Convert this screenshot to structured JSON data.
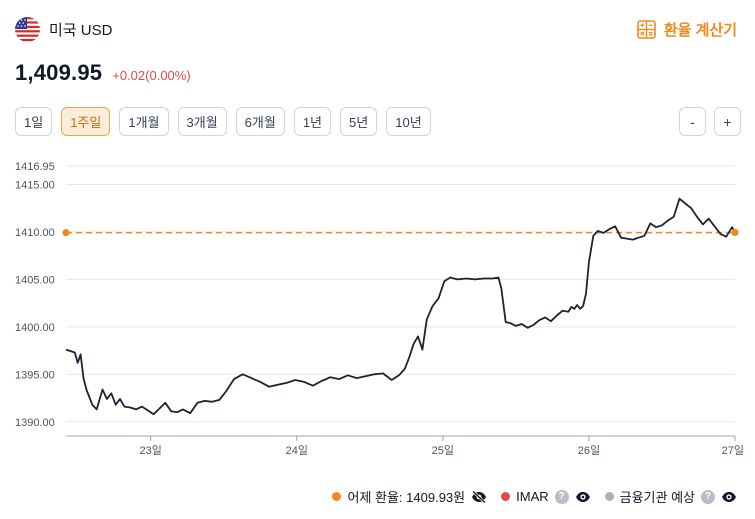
{
  "header": {
    "currency_name": "미국 USD",
    "flag_icon": "us-flag-icon",
    "calculator_label": "환율 계산기",
    "calculator_icon": "calculator-icon"
  },
  "rate": {
    "value": "1,409.95",
    "change": "+0.02(0.00%)"
  },
  "periods": [
    {
      "label": "1일",
      "active": false
    },
    {
      "label": "1주일",
      "active": true
    },
    {
      "label": "1개월",
      "active": false
    },
    {
      "label": "3개월",
      "active": false
    },
    {
      "label": "6개월",
      "active": false
    },
    {
      "label": "1년",
      "active": false
    },
    {
      "label": "5년",
      "active": false
    },
    {
      "label": "10년",
      "active": false
    }
  ],
  "zoom": {
    "out_label": "-",
    "in_label": "+"
  },
  "colors": {
    "line": "#1c2333",
    "reference": "#f08a1c",
    "imar": "#e5484d",
    "bank": "#aab0b9"
  },
  "legend": {
    "yesterday": "어제 환율: 1409.93원",
    "imar": "IMAR",
    "bank": "금융기관 예상",
    "help": "?"
  },
  "chart_data": {
    "type": "line",
    "x_unit": "day",
    "xlim": [
      22.42,
      27.0
    ],
    "ylim": [
      1388.5,
      1416.95
    ],
    "y_ticks": [
      1390.0,
      1395.0,
      1400.0,
      1405.0,
      1410.0,
      1415.0,
      1416.95
    ],
    "y_tick_labels": [
      "1390.00",
      "1395.00",
      "1400.00",
      "1405.00",
      "1410.00",
      "1415.00",
      "1416.95"
    ],
    "x_ticks": [
      23,
      24,
      25,
      26,
      27
    ],
    "x_tick_labels": [
      "23일",
      "24일",
      "25일",
      "26일",
      "27일"
    ],
    "reference_line": 1409.93,
    "grid": true,
    "series": [
      {
        "x": [
          22.42,
          22.48,
          22.5,
          22.52,
          22.54,
          22.56,
          22.6,
          22.63,
          22.67,
          22.7,
          22.73,
          22.76,
          22.79,
          22.82,
          22.86,
          22.9,
          22.94,
          22.98,
          23.02,
          23.06,
          23.1,
          23.14,
          23.18,
          23.22,
          23.27,
          23.32,
          23.37,
          23.42,
          23.47,
          23.52,
          23.57,
          23.63,
          23.69,
          23.75,
          23.81,
          23.87,
          23.93,
          23.99,
          24.05,
          24.11,
          24.17,
          24.23,
          24.29,
          24.35,
          24.41,
          24.47,
          24.53,
          24.59,
          24.65,
          24.7,
          24.74,
          24.77,
          24.8,
          24.83,
          24.86,
          24.89,
          24.93,
          24.97,
          25.01,
          25.05,
          25.1,
          25.16,
          25.22,
          25.28,
          25.34,
          25.38,
          25.4,
          25.43,
          25.46,
          25.5,
          25.54,
          25.58,
          25.62,
          25.66,
          25.7,
          25.74,
          25.78,
          25.82,
          25.86,
          25.88,
          25.9,
          25.92,
          25.94,
          25.96,
          25.98,
          26.0,
          26.03,
          26.06,
          26.1,
          26.14,
          26.18,
          26.22,
          26.26,
          26.3,
          26.34,
          26.38,
          26.42,
          26.46,
          26.5,
          26.54,
          26.58,
          26.62,
          26.66,
          26.7,
          26.74,
          26.78,
          26.82,
          26.86,
          26.9,
          26.94,
          26.98,
          27.0
        ],
        "y": [
          1397.6,
          1397.3,
          1396.2,
          1397.1,
          1394.6,
          1393.4,
          1391.8,
          1391.3,
          1393.4,
          1392.4,
          1393.0,
          1391.8,
          1392.4,
          1391.6,
          1391.5,
          1391.3,
          1391.6,
          1391.2,
          1390.8,
          1391.4,
          1392.0,
          1391.1,
          1391.0,
          1391.3,
          1390.9,
          1392.0,
          1392.2,
          1392.1,
          1392.3,
          1393.3,
          1394.5,
          1395.0,
          1394.6,
          1394.2,
          1393.7,
          1393.9,
          1394.1,
          1394.4,
          1394.2,
          1393.8,
          1394.3,
          1394.7,
          1394.5,
          1394.9,
          1394.6,
          1394.8,
          1395.0,
          1395.1,
          1394.4,
          1394.9,
          1395.6,
          1396.8,
          1398.2,
          1399.0,
          1397.6,
          1400.8,
          1402.2,
          1403.0,
          1404.8,
          1405.2,
          1405.0,
          1405.1,
          1405.0,
          1405.1,
          1405.1,
          1405.2,
          1404.1,
          1400.5,
          1400.4,
          1400.1,
          1400.3,
          1399.9,
          1400.2,
          1400.7,
          1401.0,
          1400.6,
          1401.2,
          1401.7,
          1401.6,
          1402.1,
          1401.9,
          1402.3,
          1401.9,
          1402.2,
          1403.5,
          1406.8,
          1409.6,
          1410.1,
          1409.9,
          1410.3,
          1410.6,
          1409.4,
          1409.3,
          1409.2,
          1409.4,
          1409.6,
          1410.9,
          1410.5,
          1410.7,
          1411.2,
          1411.6,
          1413.5,
          1413.0,
          1412.5,
          1411.6,
          1410.8,
          1411.4,
          1410.6,
          1409.8,
          1409.5,
          1410.5,
          1409.95
        ]
      }
    ]
  }
}
